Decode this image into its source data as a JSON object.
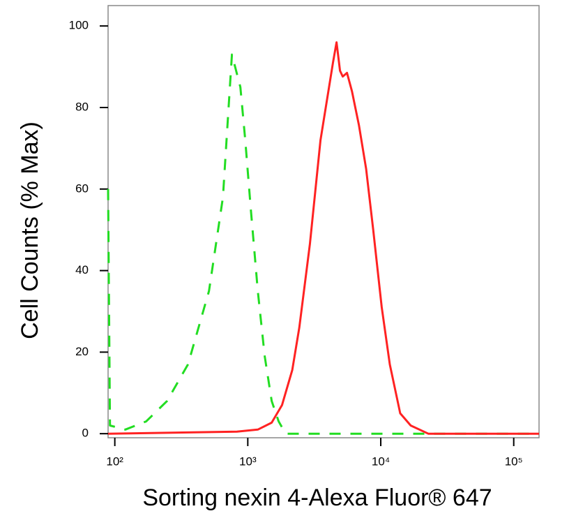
{
  "chart_data": {
    "type": "line",
    "x_label": "Sorting nexin 4-Alexa Fluor® 647",
    "y_label": "Cell Counts (% Max)",
    "log_x": true,
    "xlim": [
      89,
      155000
    ],
    "ylim": [
      -1,
      105
    ],
    "xticks": [
      {
        "value": 100,
        "label": "10²"
      },
      {
        "value": 1000,
        "label": "10³"
      },
      {
        "value": 10000,
        "label": "10⁴"
      },
      {
        "value": 100000,
        "label": "10⁵"
      }
    ],
    "yticks": [
      0,
      20,
      40,
      60,
      80,
      100
    ],
    "series": [
      {
        "color": "#22dd22",
        "dash": true,
        "x": [
          89,
          92,
          120,
          172,
          247,
          355,
          511,
          650,
          760,
          879,
          957,
          1054,
          1189,
          1341,
          1513,
          1707,
          1926,
          155000
        ],
        "values": [
          60,
          2,
          1,
          3,
          8,
          17,
          35,
          58,
          93,
          85,
          72,
          55,
          35,
          19,
          8,
          3,
          0,
          0
        ]
      },
      {
        "color": "#ff2222",
        "dash": false,
        "x": [
          89,
          828,
          1189,
          1513,
          1809,
          2160,
          2440,
          2930,
          3520,
          3970,
          4370,
          4650,
          4940,
          5180,
          5570,
          6070,
          6860,
          7760,
          8770,
          10170,
          11690,
          14010,
          16800,
          22770,
          155000
        ],
        "values": [
          0,
          0.5,
          1,
          2.7,
          7,
          15.6,
          26,
          46.5,
          72,
          82.5,
          91,
          96,
          89,
          87.6,
          88.5,
          84,
          75.6,
          65,
          50,
          31,
          17,
          5,
          2,
          0,
          0
        ]
      }
    ]
  }
}
